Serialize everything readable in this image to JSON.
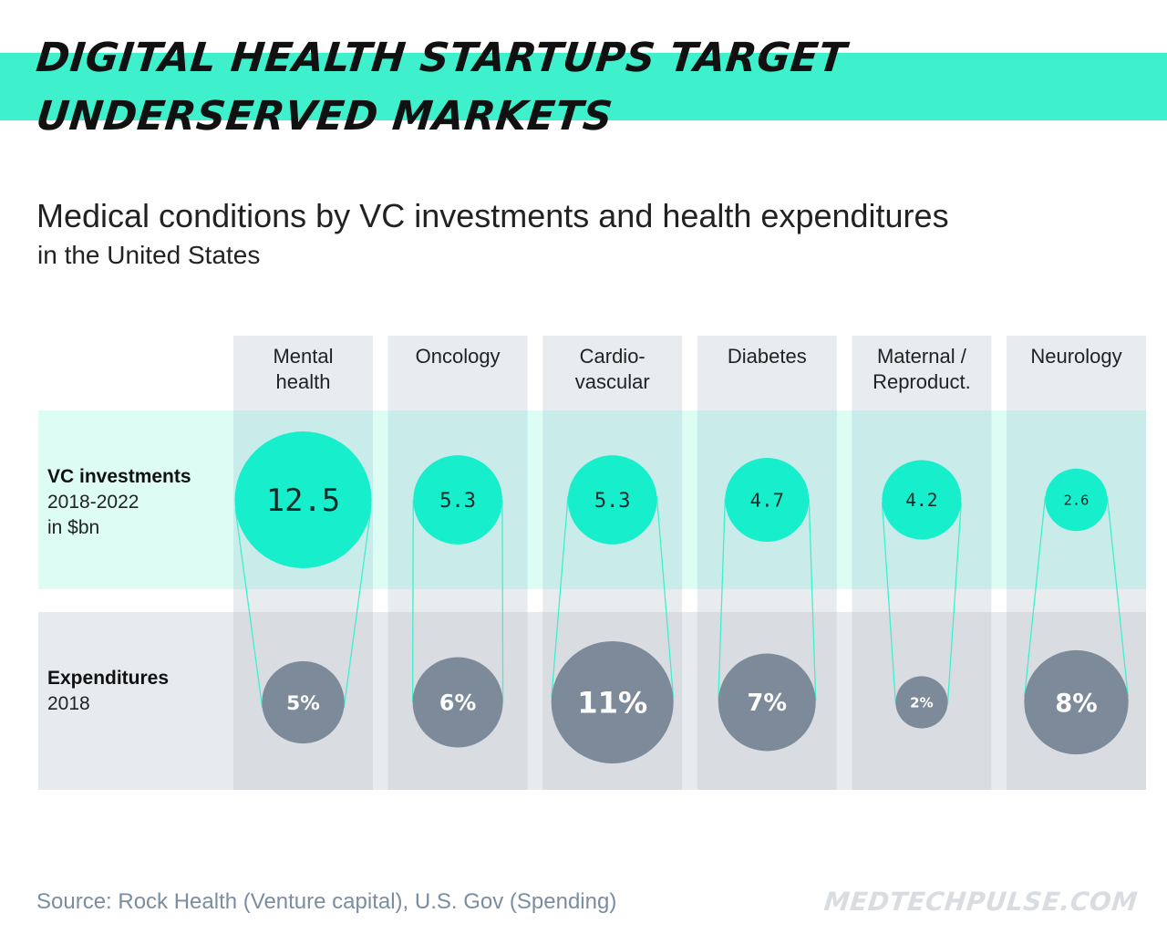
{
  "header": {
    "title_line_1": "DIGITAL HEALTH STARTUPS TARGET",
    "title_line_2": "UNDERSERVED MARKETS",
    "subtitle": "Medical conditions by VC investments and health expenditures",
    "subtitle_2": "in the United States"
  },
  "footer": {
    "source": "Source: Rock Health (Venture capital),  U.S. Gov (Spending)",
    "brand": "MEDTECHPULSE.COM"
  },
  "colors": {
    "accent": "#3ef0cc",
    "vc_bubble": "#17eecb",
    "exp_bubble": "#7d8a99",
    "vc_row_band": "#dcfcf4",
    "column_bg": "#e8ecee",
    "vc_row_column": "#c9ecea",
    "exp_row_column": "#d9dde1",
    "connector": "#3ef0cc"
  },
  "chart_data": {
    "type": "bubble-matrix",
    "title": "Medical conditions by VC investments and health expenditures",
    "subtitle": "in the United States",
    "categories": [
      {
        "lines": [
          "Mental",
          "health"
        ]
      },
      {
        "lines": [
          "Oncology"
        ]
      },
      {
        "lines": [
          "Cardio-",
          "vascular"
        ]
      },
      {
        "lines": [
          "Diabetes"
        ]
      },
      {
        "lines": [
          "Maternal /",
          "Reproduct."
        ]
      },
      {
        "lines": [
          "Neurology"
        ]
      }
    ],
    "rows": [
      {
        "name": "VC investments",
        "detail": [
          "2018-2022",
          "in $bn"
        ]
      },
      {
        "name": "Expenditures",
        "detail": [
          "2018"
        ]
      }
    ],
    "series": [
      {
        "name": "VC investments 2018-2022 (in $bn)",
        "values": [
          12.5,
          5.3,
          5.3,
          4.7,
          4.2,
          2.6
        ],
        "labels": [
          "12.5",
          "5.3",
          "5.3",
          "4.7",
          "4.2",
          "2.6"
        ]
      },
      {
        "name": "Expenditures 2018 (%)",
        "values": [
          5,
          6,
          11,
          7,
          2,
          8
        ],
        "labels": [
          "5%",
          "6%",
          "11%",
          "7%",
          "2%",
          "8%"
        ]
      }
    ]
  }
}
